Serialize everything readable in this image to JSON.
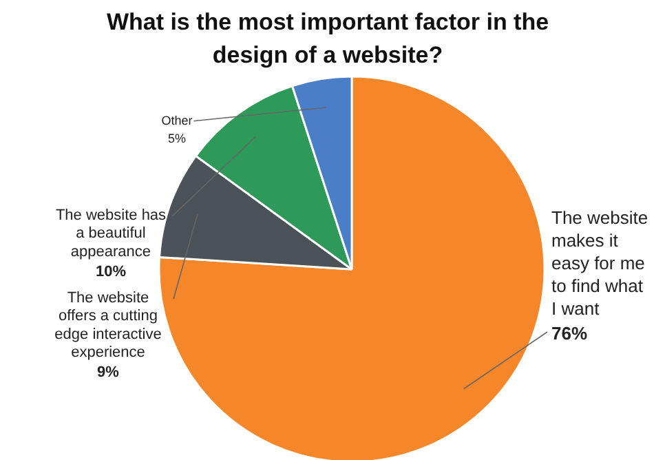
{
  "chart_data": {
    "type": "pie",
    "title": "What is the most important factor in the design of a website?",
    "categories": [
      "The website makes it easy for me to find what I want",
      "The website offers a cutting edge interactive experience",
      "The website has a beautiful appearance",
      "Other"
    ],
    "values": [
      76,
      9,
      10,
      5
    ],
    "colors": [
      "#f5862a",
      "#4b5258",
      "#2d9a5a",
      "#4a7ec6"
    ],
    "data_labels": true,
    "value_labels": [
      "76%",
      "9%",
      "10%",
      "5%"
    ]
  }
}
